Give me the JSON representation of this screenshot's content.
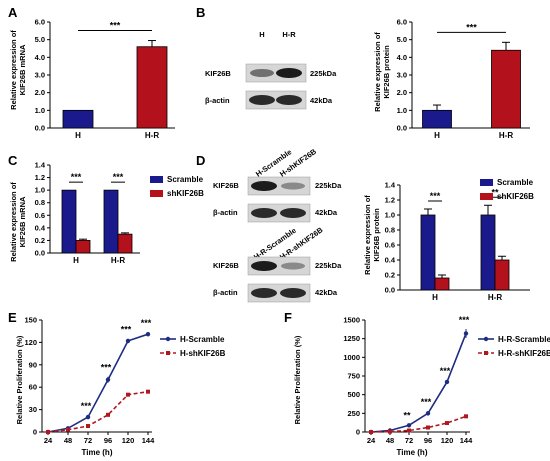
{
  "colors": {
    "blue": "#1a1a8c",
    "red": "#b3111b",
    "navy": "#1f2d80",
    "darkred": "#b01820"
  },
  "labels": {
    "A": "A",
    "B": "B",
    "C": "C",
    "D": "D",
    "E": "E",
    "F": "F",
    "ylab_A_1": "Relative expression of",
    "ylab_A_2": "KIF26B mRNA",
    "ylab_B_1": "Relative expression of",
    "ylab_B_2": "KIF26B protein",
    "ylab_C_1": "Relative expression of",
    "ylab_C_2": "KIF26B mRNA",
    "ylab_D_1": "Relative expression of",
    "ylab_D_2": "KIF26B protein",
    "ylab_E": "Relative Proliferation (%)",
    "ylab_F": "Relative Proliferation (%)",
    "xlab_E": "Time (h)",
    "xlab_F": "Time (h)"
  },
  "blots": {
    "B": {
      "lanes": [
        "H",
        "H-R"
      ],
      "row1": "KIF26B",
      "row2": "β-actin",
      "kda1": "225kDa",
      "kda2": "42kDa"
    },
    "D1": {
      "lanes": [
        "H-Scramble",
        "H-shKIF26B"
      ],
      "row1": "KIF26B",
      "row2": "β-actin",
      "kda1": "225kDa",
      "kda2": "42kDa"
    },
    "D2": {
      "lanes": [
        "H-R-Scramble",
        "H-R-shKIF26B"
      ],
      "row1": "KIF26B",
      "row2": "β-actin",
      "kda1": "225kDa",
      "kda2": "42kDa"
    }
  },
  "chart_data": [
    {
      "panel": "A",
      "type": "bar",
      "categories": [
        "H",
        "H-R"
      ],
      "values": [
        1.0,
        4.6
      ],
      "errors": [
        0,
        0.35
      ],
      "ylabel": "Relative expression of KIF26B mRNA",
      "ylim": [
        0,
        6.0
      ],
      "yticks": [
        "0.0",
        "1.0",
        "2.0",
        "3.0",
        "4.0",
        "5.0",
        "6.0"
      ],
      "significance": [
        "***"
      ]
    },
    {
      "panel": "B",
      "type": "bar",
      "categories": [
        "H",
        "H-R"
      ],
      "values": [
        1.0,
        4.4
      ],
      "errors": [
        0.3,
        0.45
      ],
      "ylabel": "Relative expression of KIF26B protein",
      "ylim": [
        0,
        6.0
      ],
      "yticks": [
        "0.0",
        "1.0",
        "2.0",
        "3.0",
        "4.0",
        "5.0",
        "6.0"
      ],
      "significance": [
        "***"
      ]
    },
    {
      "panel": "C",
      "type": "bar",
      "categories": [
        "H",
        "H-R"
      ],
      "series": [
        {
          "name": "Scramble",
          "values": [
            1.0,
            1.0
          ],
          "errors": [
            0,
            0
          ]
        },
        {
          "name": "shKIF26B",
          "values": [
            0.2,
            0.3
          ],
          "errors": [
            0.02,
            0.02
          ]
        }
      ],
      "ylabel": "Relative expression of KIF26B mRNA",
      "ylim": [
        0,
        1.4
      ],
      "yticks": [
        "0.0",
        "0.2",
        "0.4",
        "0.6",
        "0.8",
        "1.0",
        "1.2",
        "1.4"
      ],
      "significance": [
        "***",
        "***"
      ]
    },
    {
      "panel": "D",
      "type": "bar",
      "categories": [
        "H",
        "H-R"
      ],
      "series": [
        {
          "name": "Scramble",
          "values": [
            1.0,
            1.0
          ],
          "errors": [
            0.08,
            0.13
          ]
        },
        {
          "name": "shKIF26B",
          "values": [
            0.16,
            0.4
          ],
          "errors": [
            0.04,
            0.05
          ]
        }
      ],
      "ylabel": "Relative expression of KIF26B protein",
      "ylim": [
        0,
        1.4
      ],
      "yticks": [
        "0.0",
        "0.2",
        "0.4",
        "0.6",
        "0.8",
        "1.0",
        "1.2",
        "1.4"
      ],
      "significance": [
        "***",
        "**"
      ]
    },
    {
      "panel": "E",
      "type": "line",
      "x": [
        24,
        48,
        72,
        96,
        120,
        144
      ],
      "series": [
        {
          "name": "H-Scramble",
          "values": [
            0,
            5,
            20,
            70,
            122,
            131
          ],
          "errors": [
            0,
            0,
            3,
            4,
            3,
            3
          ]
        },
        {
          "name": "H-shKIF26B",
          "values": [
            0,
            3,
            8,
            23,
            50,
            54
          ],
          "errors": [
            0,
            0,
            1,
            2,
            1,
            1
          ]
        }
      ],
      "xlabel": "Time (h)",
      "ylabel": "Relative Proliferation (%)",
      "ylim": [
        0,
        150
      ],
      "xticks": [
        "24",
        "48",
        "72",
        "96",
        "120",
        "144"
      ],
      "yticks": [
        "0",
        "30",
        "60",
        "90",
        "120",
        "150"
      ],
      "significance": [
        "***",
        "***",
        "***",
        "***"
      ]
    },
    {
      "panel": "F",
      "type": "line",
      "x": [
        24,
        48,
        72,
        96,
        120,
        144
      ],
      "series": [
        {
          "name": "H-R-Scramble",
          "values": [
            0,
            20,
            90,
            250,
            670,
            1320
          ],
          "errors": [
            0,
            0,
            10,
            30,
            25,
            60
          ]
        },
        {
          "name": "H-R-shKIF26B",
          "values": [
            0,
            5,
            20,
            60,
            120,
            210
          ],
          "errors": [
            0,
            0,
            3,
            5,
            6,
            8
          ]
        }
      ],
      "xlabel": "Time (h)",
      "ylabel": "Relative Proliferation (%)",
      "ylim": [
        0,
        1500
      ],
      "xticks": [
        "24",
        "48",
        "72",
        "96",
        "120",
        "144"
      ],
      "yticks": [
        "0",
        "250",
        "500",
        "750",
        "1000",
        "1250",
        "1500"
      ],
      "significance": [
        "**",
        "***",
        "***",
        "***"
      ]
    }
  ]
}
